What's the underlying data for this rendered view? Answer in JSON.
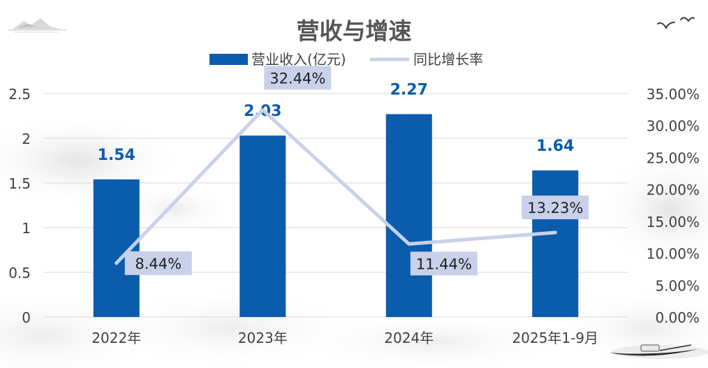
{
  "chart_data": {
    "type": "bar",
    "title": "营收与增速",
    "categories": [
      "2022年",
      "2023年",
      "2024年",
      "2025年1-9月"
    ],
    "series": [
      {
        "name": "营业收入(亿元)",
        "type": "bar",
        "axis": "left",
        "values": [
          1.54,
          2.03,
          2.27,
          1.64
        ],
        "labels": [
          "1.54",
          "2.03",
          "2.27",
          "1.64"
        ]
      },
      {
        "name": "同比增长率",
        "type": "line",
        "axis": "right",
        "values": [
          8.44,
          32.44,
          11.44,
          13.23
        ],
        "labels": [
          "8.44%",
          "32.44%",
          "11.44%",
          "13.23%"
        ]
      }
    ],
    "left_axis": {
      "min": 0,
      "max": 2.5,
      "ticks": [
        "0",
        "0.5",
        "1",
        "1.5",
        "2",
        "2.5"
      ]
    },
    "right_axis": {
      "min": 0,
      "max": 35,
      "ticks": [
        "0.00%",
        "5.00%",
        "10.00%",
        "15.00%",
        "20.00%",
        "25.00%",
        "30.00%",
        "35.00%"
      ]
    },
    "grid": true,
    "legend_position": "top"
  },
  "colors": {
    "bar": "#0b5cad",
    "line": "#c9d1ea",
    "label_box": "#c9d1ea",
    "grid": "#d9d9d9",
    "title": "#555555"
  }
}
